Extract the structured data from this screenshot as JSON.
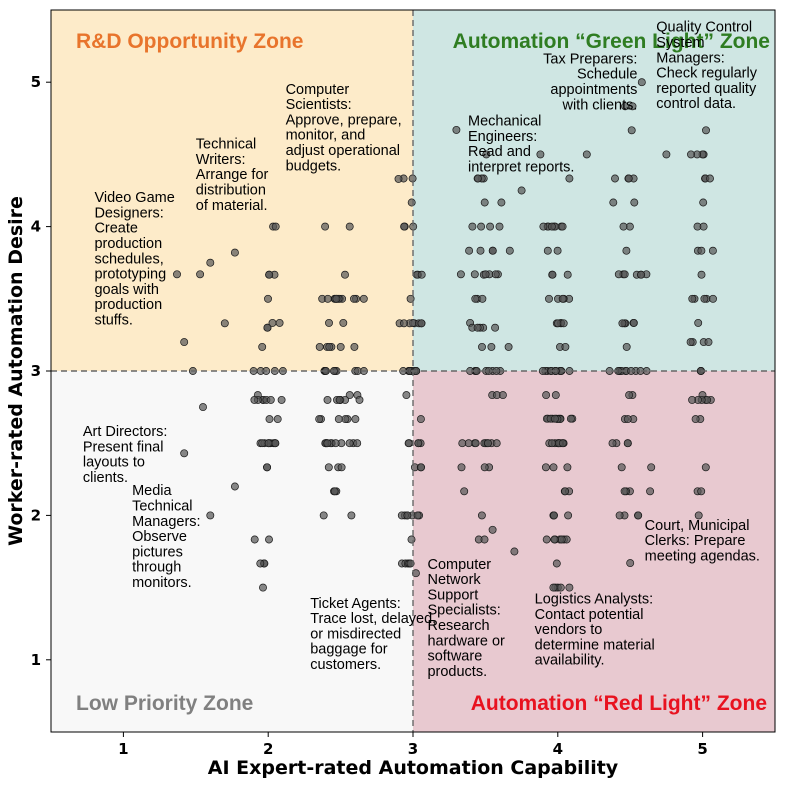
{
  "chart_data": {
    "type": "scatter",
    "xlabel": "AI Expert-rated Automation Capability",
    "ylabel": "Worker-rated Automation Desire",
    "xlim": [
      0.5,
      5.5
    ],
    "ylim": [
      0.5,
      5.5
    ],
    "xticks": [
      "1",
      "2",
      "3",
      "4",
      "5"
    ],
    "yticks": [
      "1",
      "2",
      "3",
      "4",
      "5"
    ],
    "threshold_x": 3,
    "threshold_y": 3,
    "grid": false,
    "legend": "none",
    "point_color": "#555555",
    "zones": [
      {
        "name": "R&D Opportunity Zone",
        "label": "R&D Opportunity Zone",
        "fill": "#fdebc9",
        "text_color": "#e8742c",
        "x": [
          0.5,
          3
        ],
        "y": [
          3,
          5.5
        ]
      },
      {
        "name": "Automation Green Light Zone",
        "label": "Automation “Green Light” Zone",
        "fill": "#cfe6e3",
        "text_color": "#2f7d22",
        "x": [
          3,
          5.5
        ],
        "y": [
          3,
          5.5
        ]
      },
      {
        "name": "Low Priority Zone",
        "label": "Low Priority Zone",
        "fill": "#f8f8f8",
        "text_color": "#808080",
        "x": [
          0.5,
          3
        ],
        "y": [
          0.5,
          3
        ]
      },
      {
        "name": "Automation Red Light Zone",
        "label": "Automation “Red Light” Zone",
        "fill": "#e8c9d0",
        "text_color": "#e8121f",
        "x": [
          3,
          5.5
        ],
        "y": [
          0.5,
          3
        ]
      }
    ],
    "annotations": [
      {
        "lines": [
          "Video Game",
          "Designers:",
          "Create",
          "production",
          "schedules,",
          "prototyping",
          "goals with",
          "production",
          "stuffs."
        ],
        "x": 0.8,
        "y": 4.17
      },
      {
        "lines": [
          "Technical",
          "Writers:",
          "Arrange for",
          "distribution",
          "of material."
        ],
        "x": 1.5,
        "y": 4.54
      },
      {
        "lines": [
          "Computer",
          "Scientists:",
          "Approve, prepare,",
          "monitor, and",
          "adjust operational",
          "budgets."
        ],
        "x": 2.12,
        "y": 4.92
      },
      {
        "lines": [
          "Tax Preparers:",
          "Schedule",
          "appointments",
          "with clients."
        ],
        "x": 4.55,
        "y": 5.13,
        "anchor": "end"
      },
      {
        "lines": [
          "Quality Control",
          "System",
          "Managers:",
          "Check regularly",
          "reported quality",
          "control data."
        ],
        "x": 4.68,
        "y": 5.35
      },
      {
        "lines": [
          "Mechanical",
          "Engineers:",
          "Read and",
          "interpret reports."
        ],
        "x": 3.38,
        "y": 4.7
      },
      {
        "lines": [
          "Art Directors:",
          "Present final",
          "layouts to",
          "clients."
        ],
        "x": 0.72,
        "y": 2.55
      },
      {
        "lines": [
          "Media",
          "Technical",
          "Managers:",
          "Observe",
          "pictures",
          "through",
          "monitors."
        ],
        "x": 1.06,
        "y": 2.14
      },
      {
        "lines": [
          "Ticket Agents:",
          "Trace lost, delayed,",
          "or misdirected",
          "baggage for",
          "customers."
        ],
        "x": 2.29,
        "y": 1.36
      },
      {
        "lines": [
          "Computer",
          "Network",
          "Support",
          "Specialists:",
          "Research",
          "hardware or",
          "software",
          "products."
        ],
        "x": 3.1,
        "y": 1.63
      },
      {
        "lines": [
          "Logistics Analysts:",
          "Contact potential",
          "vendors to",
          "determine material",
          "availability."
        ],
        "x": 3.84,
        "y": 1.39
      },
      {
        "lines": [
          "Court, Municipal",
          "Clerks: Prepare",
          "meeting agendas."
        ],
        "x": 4.6,
        "y": 1.9
      }
    ],
    "seed": 7,
    "clusters": [
      {
        "x": 2.0,
        "spread_x": 0.07,
        "count": 45,
        "ymin": 1.5,
        "ymax": 4.0,
        "dense": [
          3.0,
          2.5,
          3.3,
          2.8
        ]
      },
      {
        "x": 2.5,
        "spread_x": 0.12,
        "count": 70,
        "ymin": 1.7,
        "ymax": 4.2,
        "dense": [
          3.0,
          2.5,
          3.5,
          2.8
        ]
      },
      {
        "x": 3.0,
        "spread_x": 0.06,
        "count": 50,
        "ymin": 1.6,
        "ymax": 4.33,
        "dense": [
          3.0,
          2.0,
          2.5,
          3.33
        ]
      },
      {
        "x": 3.5,
        "spread_x": 0.12,
        "count": 65,
        "ymin": 1.8,
        "ymax": 4.5,
        "dense": [
          3.0,
          3.3,
          2.5,
          3.67
        ]
      },
      {
        "x": 4.0,
        "spread_x": 0.07,
        "count": 85,
        "ymin": 1.5,
        "ymax": 4.5,
        "dense": [
          3.0,
          2.67,
          3.33,
          4.0,
          2.5
        ]
      },
      {
        "x": 4.5,
        "spread_x": 0.1,
        "count": 55,
        "ymin": 1.9,
        "ymax": 5.0,
        "dense": [
          3.0,
          2.5,
          3.33,
          3.67
        ]
      },
      {
        "x": 5.0,
        "spread_x": 0.06,
        "count": 40,
        "ymin": 2.0,
        "ymax": 4.7,
        "dense": [
          3.0,
          3.2,
          2.8,
          3.5
        ]
      }
    ],
    "outliers": [
      {
        "x": 1.37,
        "y": 3.67
      },
      {
        "x": 1.42,
        "y": 3.2
      },
      {
        "x": 1.48,
        "y": 3.0
      },
      {
        "x": 1.53,
        "y": 3.67
      },
      {
        "x": 1.6,
        "y": 3.75
      },
      {
        "x": 1.7,
        "y": 3.33
      },
      {
        "x": 1.77,
        "y": 3.82
      },
      {
        "x": 1.55,
        "y": 2.75
      },
      {
        "x": 1.6,
        "y": 2.0
      },
      {
        "x": 1.42,
        "y": 2.43
      },
      {
        "x": 1.77,
        "y": 2.2
      },
      {
        "x": 3.02,
        "y": 1.6
      },
      {
        "x": 3.3,
        "y": 4.67
      },
      {
        "x": 3.75,
        "y": 4.25
      },
      {
        "x": 3.7,
        "y": 1.75
      },
      {
        "x": 4.08,
        "y": 1.5
      },
      {
        "x": 4.58,
        "y": 5.0
      },
      {
        "x": 4.92,
        "y": 4.5
      },
      {
        "x": 4.75,
        "y": 4.5
      },
      {
        "x": 3.55,
        "y": 1.9
      },
      {
        "x": 4.5,
        "y": 1.67
      },
      {
        "x": 3.88,
        "y": 4.5
      },
      {
        "x": 4.2,
        "y": 4.5
      },
      {
        "x": 2.9,
        "y": 4.33
      }
    ]
  }
}
